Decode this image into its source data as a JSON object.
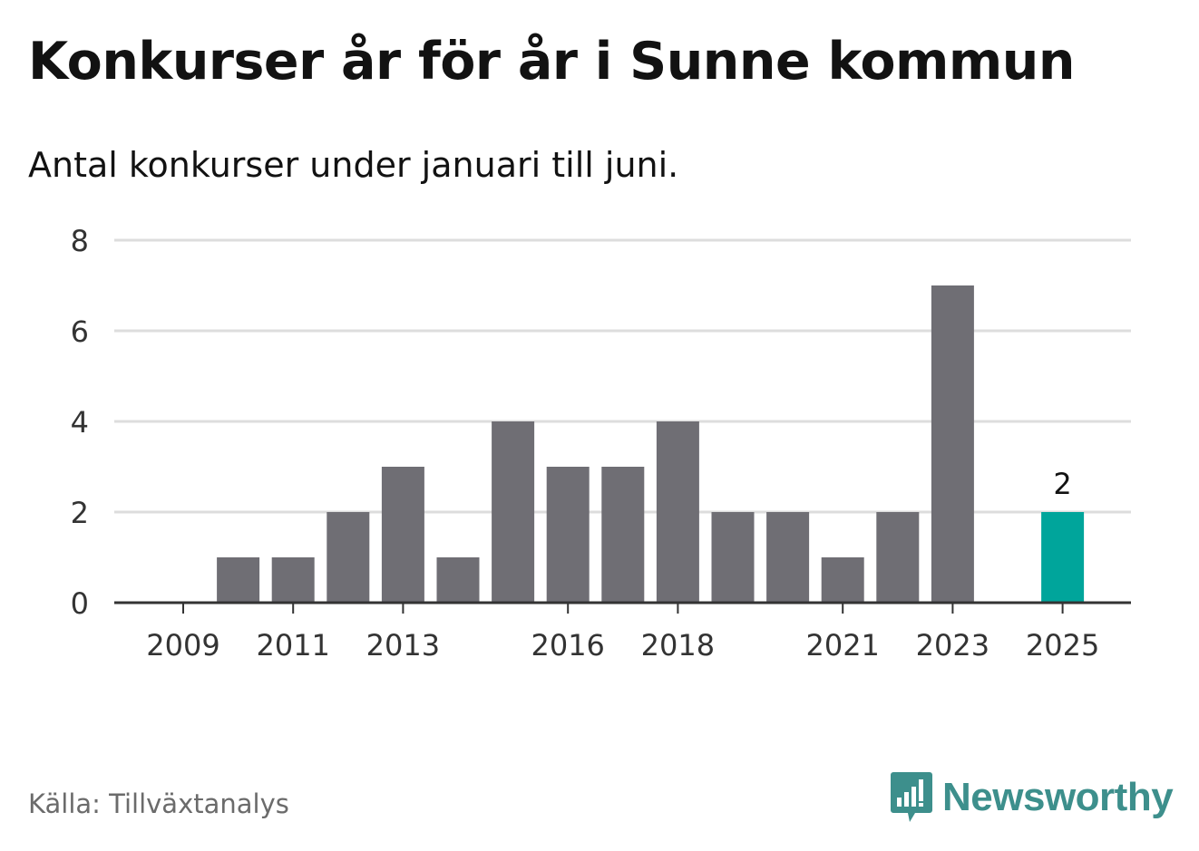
{
  "title": "Konkurser år för år i Sunne kommun",
  "subtitle": "Antal konkurser under januari till juni.",
  "source": "Källa: Tillväxtanalys",
  "brand": {
    "name": "Newsworthy",
    "color": "#3d8f8c",
    "icon": "newsworthy-logo-icon"
  },
  "colors": {
    "bar": "#6f6e74",
    "highlight": "#00a59b",
    "grid": "#dddddd",
    "baseline": "#333333"
  },
  "chart_data": {
    "type": "bar",
    "title": "Konkurser år för år i Sunne kommun",
    "subtitle": "Antal konkurser under januari till juni.",
    "categories": [
      "2009",
      "2010",
      "2011",
      "2012",
      "2013",
      "2014",
      "2015",
      "2016",
      "2017",
      "2018",
      "2019",
      "2020",
      "2021",
      "2022",
      "2023",
      "2024",
      "2025"
    ],
    "values": [
      0,
      1,
      1,
      2,
      3,
      1,
      4,
      3,
      3,
      4,
      2,
      2,
      1,
      2,
      7,
      0,
      2
    ],
    "x_tick_labels": [
      "2009",
      "2011",
      "2013",
      "2016",
      "2018",
      "2021",
      "2023",
      "2025"
    ],
    "y_ticks": [
      0,
      2,
      4,
      6,
      8
    ],
    "ylim": [
      0,
      8
    ],
    "xlabel": "",
    "ylabel": "",
    "grid": true,
    "highlight": {
      "category": "2025",
      "label": "2"
    }
  }
}
